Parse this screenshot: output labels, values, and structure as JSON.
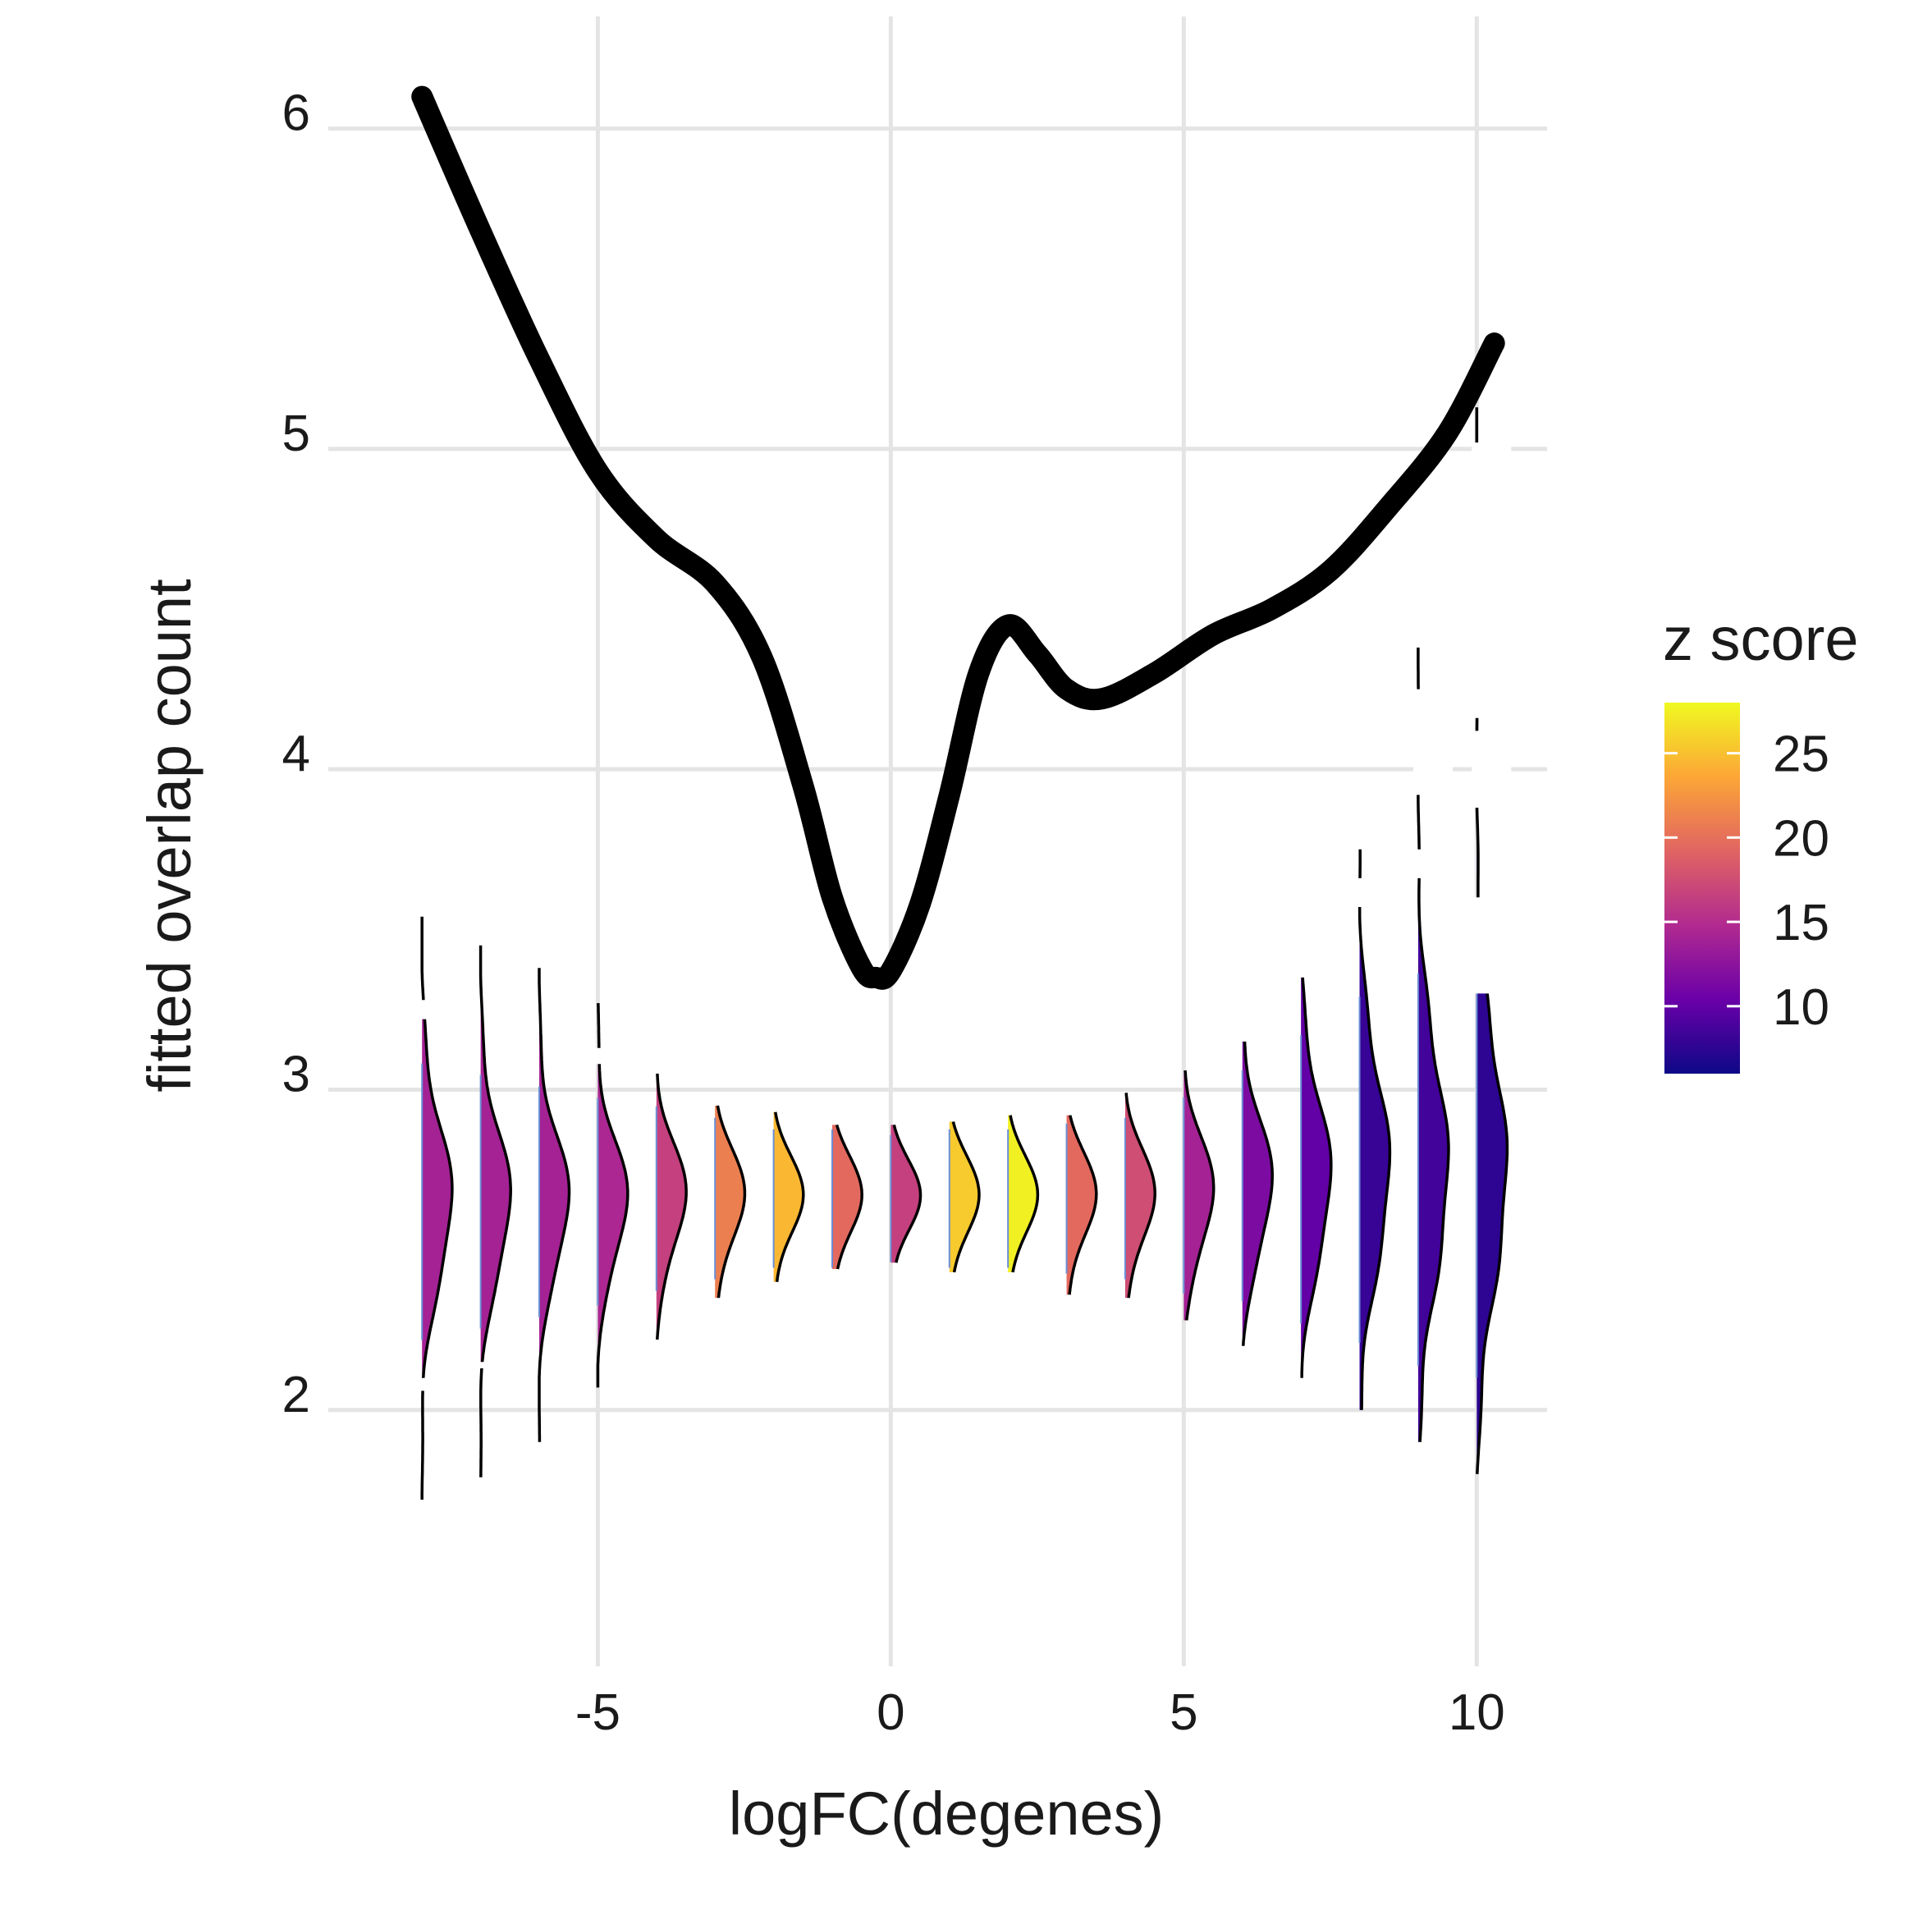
{
  "chart_data": {
    "type": "line+ridgeline",
    "title": "",
    "xlabel": "logFC(degenes)",
    "ylabel": "fitted overlap count",
    "xlim": [
      -9.6,
      11.2
    ],
    "ylim": [
      1.2,
      6.35
    ],
    "x_ticks": [
      -5,
      0,
      5,
      10
    ],
    "x_tick_labels": [
      "-5",
      "0",
      "5",
      "10"
    ],
    "y_ticks": [
      2,
      3,
      4,
      5,
      6
    ],
    "y_tick_labels": [
      "2",
      "3",
      "4",
      "5",
      "6"
    ],
    "grid": true,
    "legend": {
      "title": "z score",
      "type": "colorbar",
      "position": "right",
      "range": [
        6,
        28
      ],
      "ticks": [
        10,
        15,
        20,
        25
      ],
      "tick_labels": [
        "10",
        "15",
        "20",
        "25"
      ],
      "colormap": [
        "#0d0887",
        "#6a00a8",
        "#b12a90",
        "#e16462",
        "#fca636",
        "#f0f921"
      ]
    },
    "fitted_curve": {
      "x": [
        -8,
        -7,
        -6,
        -5,
        -4,
        -3,
        -2.2,
        -1.5,
        -1,
        -0.5,
        -0.25,
        0,
        0.5,
        1,
        1.5,
        2,
        2.5,
        3,
        3.6,
        4.5,
        5.5,
        6.5,
        7.5,
        8.5,
        9.5,
        10.3
      ],
      "y": [
        6.1,
        5.68,
        5.28,
        4.93,
        4.72,
        4.58,
        4.35,
        3.95,
        3.6,
        3.38,
        3.35,
        3.37,
        3.58,
        3.92,
        4.3,
        4.45,
        4.36,
        4.25,
        4.22,
        4.3,
        4.42,
        4.5,
        4.62,
        4.82,
        5.05,
        5.33
      ]
    },
    "densities": [
      {
        "x": -8,
        "z": 14.0,
        "center": 2.65,
        "sd": 0.24,
        "ymin": 1.72,
        "ymax": 3.54,
        "gaps": [
          [
            2.1,
            2.06
          ],
          [
            3.28,
            3.22
          ]
        ]
      },
      {
        "x": -7,
        "z": 14.0,
        "center": 2.65,
        "sd": 0.22,
        "ymin": 1.79,
        "ymax": 3.45,
        "gaps": [
          [
            2.15,
            2.13
          ]
        ]
      },
      {
        "x": -6,
        "z": 14.0,
        "center": 2.65,
        "sd": 0.2,
        "ymin": 1.9,
        "ymax": 3.38,
        "gaps": []
      },
      {
        "x": -5,
        "z": 14.5,
        "center": 2.65,
        "sd": 0.18,
        "ymin": 2.07,
        "ymax": 3.27,
        "gaps": [
          [
            3.13,
            3.08
          ]
        ]
      },
      {
        "x": -4,
        "z": 16.5,
        "center": 2.66,
        "sd": 0.16,
        "ymin": 2.22,
        "ymax": 3.05,
        "gaps": []
      },
      {
        "x": -3,
        "z": 21.0,
        "center": 2.66,
        "sd": 0.14,
        "ymin": 2.35,
        "ymax": 2.95,
        "gaps": []
      },
      {
        "x": -2,
        "z": 24.5,
        "center": 2.66,
        "sd": 0.12,
        "ymin": 2.4,
        "ymax": 2.93,
        "gaps": []
      },
      {
        "x": -1,
        "z": 19.5,
        "center": 2.66,
        "sd": 0.12,
        "ymin": 2.44,
        "ymax": 2.89,
        "gaps": []
      },
      {
        "x": 0,
        "z": 16.5,
        "center": 2.66,
        "sd": 0.11,
        "ymin": 2.46,
        "ymax": 2.89,
        "gaps": []
      },
      {
        "x": 1,
        "z": 25.5,
        "center": 2.66,
        "sd": 0.12,
        "ymin": 2.43,
        "ymax": 2.9,
        "gaps": []
      },
      {
        "x": 2,
        "z": 27.5,
        "center": 2.66,
        "sd": 0.12,
        "ymin": 2.43,
        "ymax": 2.92,
        "gaps": []
      },
      {
        "x": 3,
        "z": 19.5,
        "center": 2.66,
        "sd": 0.13,
        "ymin": 2.36,
        "ymax": 2.92,
        "gaps": []
      },
      {
        "x": 4,
        "z": 17.5,
        "center": 2.66,
        "sd": 0.14,
        "ymin": 2.35,
        "ymax": 2.99,
        "gaps": []
      },
      {
        "x": 5,
        "z": 14.0,
        "center": 2.67,
        "sd": 0.17,
        "ymin": 2.28,
        "ymax": 3.06,
        "gaps": []
      },
      {
        "x": 6,
        "z": 11.5,
        "center": 2.7,
        "sd": 0.2,
        "ymin": 2.2,
        "ymax": 3.15,
        "gaps": []
      },
      {
        "x": 7,
        "z": 10.0,
        "center": 2.72,
        "sd": 0.25,
        "ymin": 2.1,
        "ymax": 3.35,
        "gaps": []
      },
      {
        "x": 8,
        "z": 8.0,
        "center": 2.75,
        "sd": 0.3,
        "ymin": 2.0,
        "ymax": 3.75,
        "gaps": [
          [
            3.66,
            3.57
          ]
        ]
      },
      {
        "x": 9,
        "z": 8.5,
        "center": 2.75,
        "sd": 0.34,
        "ymin": 1.9,
        "ymax": 4.38,
        "gaps": [
          [
            4.25,
            3.92
          ],
          [
            3.75,
            3.66
          ]
        ]
      },
      {
        "x": 10,
        "z": 7.5,
        "center": 2.75,
        "sd": 0.36,
        "ymin": 1.8,
        "ymax": 5.13,
        "gaps": [
          [
            5.02,
            4.16
          ],
          [
            4.12,
            3.88
          ],
          [
            3.6,
            3.3
          ]
        ]
      }
    ]
  }
}
